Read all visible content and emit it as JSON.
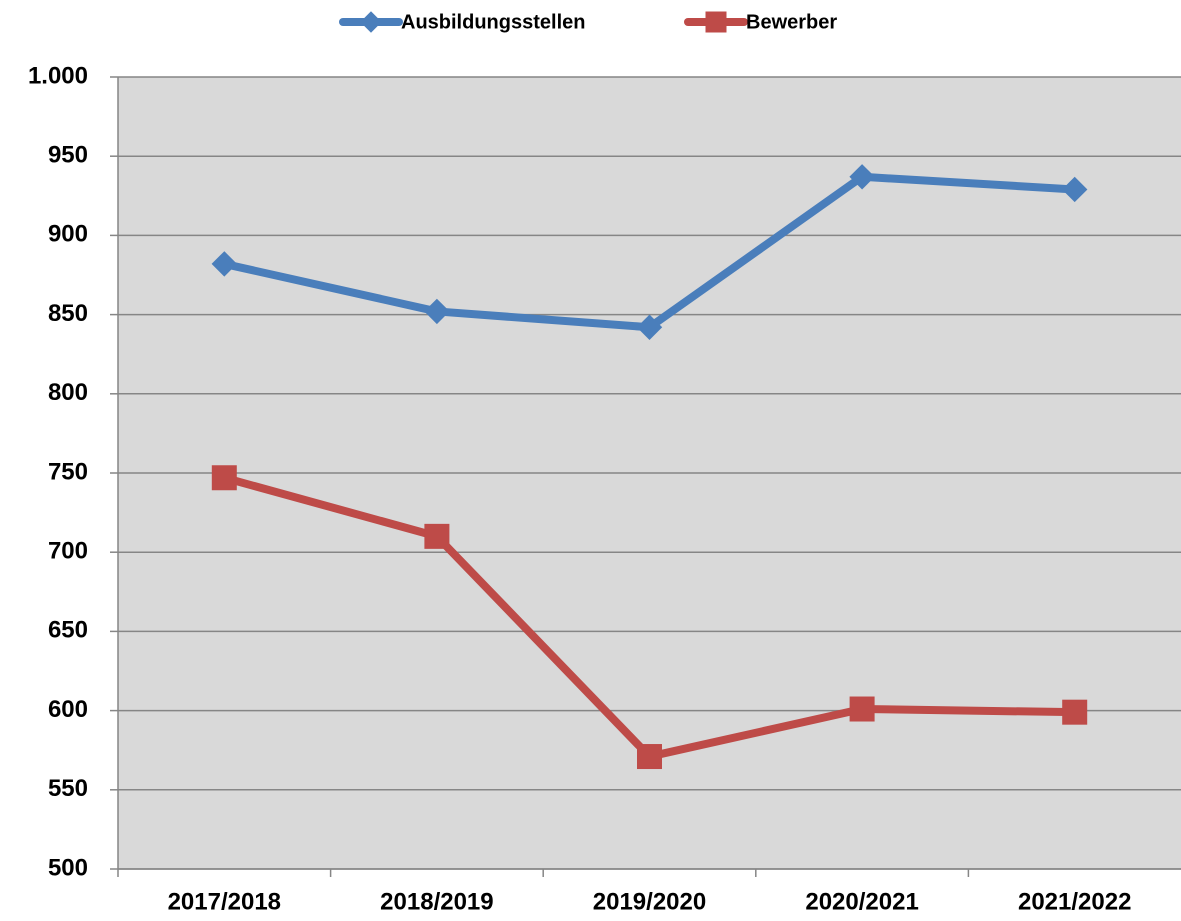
{
  "chart_data": {
    "type": "line",
    "categories": [
      "2017/2018",
      "2018/2019",
      "2019/2020",
      "2020/2021",
      "2021/2022"
    ],
    "series": [
      {
        "name": "Ausbildungsstellen",
        "color": "#4a7ebb",
        "marker": "diamond",
        "values": [
          882,
          852,
          842,
          937,
          929
        ]
      },
      {
        "name": "Bewerber",
        "color": "#be4b48",
        "marker": "square",
        "values": [
          747,
          710,
          571,
          601,
          599
        ]
      }
    ],
    "ylim": [
      500,
      1000
    ],
    "yticks": [
      500,
      550,
      600,
      650,
      700,
      750,
      800,
      850,
      900,
      950,
      {
        "value": 1000,
        "label": "1.000"
      }
    ],
    "grid": true,
    "legend": "top"
  }
}
